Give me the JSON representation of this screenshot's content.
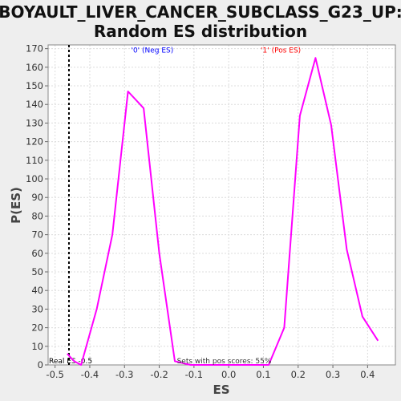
{
  "chart_data": {
    "type": "line",
    "title": "BOYAULT_LIVER_CANCER_SUBCLASS_G23_UP:",
    "subtitle": "Random ES distribution",
    "xlabel": "ES",
    "ylabel": "P(ES)",
    "xlim": [
      -0.52,
      0.48
    ],
    "ylim": [
      0,
      172
    ],
    "xticks": [
      -0.5,
      -0.4,
      -0.3,
      -0.2,
      -0.1,
      0.0,
      0.1,
      0.2,
      0.3,
      0.4
    ],
    "xtick_labels": [
      "-0.5",
      "-0.4",
      "-0.3",
      "-0.2",
      "-0.1",
      "0.0",
      "0.1",
      "0.2",
      "0.3",
      "0.4"
    ],
    "yticks": [
      0,
      10,
      20,
      30,
      40,
      50,
      60,
      70,
      80,
      90,
      100,
      110,
      120,
      130,
      140,
      150,
      160,
      170
    ],
    "grid": true,
    "series": [
      {
        "color": "#ff00ff",
        "x": [
          -0.465,
          -0.445,
          -0.425,
          -0.38,
          -0.335,
          -0.29,
          -0.245,
          -0.2,
          -0.155,
          -0.11,
          -0.065,
          -0.02,
          0.025,
          0.07,
          0.115,
          0.16,
          0.205,
          0.25,
          0.295,
          0.34,
          0.385,
          0.43
        ],
        "y": [
          6,
          2,
          0,
          30,
          70,
          147,
          138,
          60,
          2,
          0,
          0,
          0,
          0,
          0,
          0,
          20,
          134,
          165,
          129,
          62,
          26,
          13
        ]
      }
    ],
    "real_es": {
      "x": -0.46,
      "label": "Real ES -0.5"
    },
    "annotations": {
      "neg_label": "'0' (Neg ES)",
      "neg_color": "#0000ff",
      "pos_label": "'1' (Pos ES)",
      "pos_color": "#ff0000",
      "neg_label_x": -0.22,
      "pos_label_x": 0.15,
      "label_y": 168,
      "pos_scores_text": "Sets with pos scores: 55%"
    }
  }
}
